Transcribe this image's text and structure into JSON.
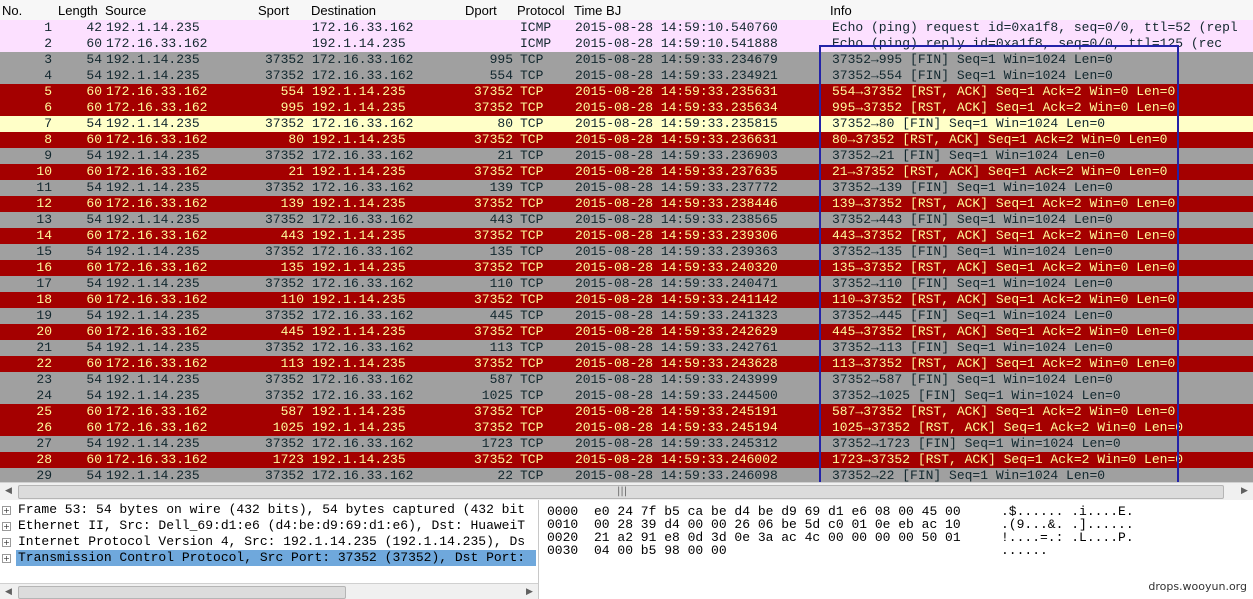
{
  "columns": [
    "No.",
    "Length",
    "Source",
    "Sport",
    "Destination",
    "Dport",
    "Protocol",
    "Time BJ",
    "Info"
  ],
  "rows": [
    {
      "no": "1",
      "len": "42",
      "src": "192.1.14.235",
      "sport": "",
      "dst": "172.16.33.162",
      "dport": "",
      "proto": "ICMP",
      "time": "2015-08-28 14:59:10.540760",
      "info": "Echo (ping) request  id=0xa1f8, seq=0/0, ttl=52 (repl",
      "style": "icmp"
    },
    {
      "no": "2",
      "len": "60",
      "src": "172.16.33.162",
      "sport": "",
      "dst": "192.1.14.235",
      "dport": "",
      "proto": "ICMP",
      "time": "2015-08-28 14:59:10.541888",
      "info": "Echo (ping) reply    id=0xa1f8, seq=0/0, ttl=125 (rec",
      "style": "icmp"
    },
    {
      "no": "3",
      "len": "54",
      "src": "192.1.14.235",
      "sport": "37352",
      "dst": "172.16.33.162",
      "dport": "995",
      "proto": "TCP",
      "time": "2015-08-28 14:59:33.234679",
      "info": "37352→995 [FIN] Seq=1 Win=1024 Len=0",
      "style": "gray"
    },
    {
      "no": "4",
      "len": "54",
      "src": "192.1.14.235",
      "sport": "37352",
      "dst": "172.16.33.162",
      "dport": "554",
      "proto": "TCP",
      "time": "2015-08-28 14:59:33.234921",
      "info": "37352→554 [FIN] Seq=1 Win=1024 Len=0",
      "style": "gray"
    },
    {
      "no": "5",
      "len": "60",
      "src": "172.16.33.162",
      "sport": "554",
      "dst": "192.1.14.235",
      "dport": "37352",
      "proto": "TCP",
      "time": "2015-08-28 14:59:33.235631",
      "info": "554→37352 [RST, ACK] Seq=1 Ack=2 Win=0 Len=0",
      "style": "red"
    },
    {
      "no": "6",
      "len": "60",
      "src": "172.16.33.162",
      "sport": "995",
      "dst": "192.1.14.235",
      "dport": "37352",
      "proto": "TCP",
      "time": "2015-08-28 14:59:33.235634",
      "info": "995→37352 [RST, ACK] Seq=1 Ack=2 Win=0 Len=0",
      "style": "red"
    },
    {
      "no": "7",
      "len": "54",
      "src": "192.1.14.235",
      "sport": "37352",
      "dst": "172.16.33.162",
      "dport": "80",
      "proto": "TCP",
      "time": "2015-08-28 14:59:33.235815",
      "info": "37352→80 [FIN] Seq=1 Win=1024 Len=0",
      "style": "yellow"
    },
    {
      "no": "8",
      "len": "60",
      "src": "172.16.33.162",
      "sport": "80",
      "dst": "192.1.14.235",
      "dport": "37352",
      "proto": "TCP",
      "time": "2015-08-28 14:59:33.236631",
      "info": "80→37352 [RST, ACK] Seq=1 Ack=2 Win=0 Len=0",
      "style": "red"
    },
    {
      "no": "9",
      "len": "54",
      "src": "192.1.14.235",
      "sport": "37352",
      "dst": "172.16.33.162",
      "dport": "21",
      "proto": "TCP",
      "time": "2015-08-28 14:59:33.236903",
      "info": "37352→21 [FIN] Seq=1 Win=1024 Len=0",
      "style": "gray"
    },
    {
      "no": "10",
      "len": "60",
      "src": "172.16.33.162",
      "sport": "21",
      "dst": "192.1.14.235",
      "dport": "37352",
      "proto": "TCP",
      "time": "2015-08-28 14:59:33.237635",
      "info": "21→37352 [RST, ACK] Seq=1 Ack=2 Win=0 Len=0",
      "style": "red"
    },
    {
      "no": "11",
      "len": "54",
      "src": "192.1.14.235",
      "sport": "37352",
      "dst": "172.16.33.162",
      "dport": "139",
      "proto": "TCP",
      "time": "2015-08-28 14:59:33.237772",
      "info": "37352→139 [FIN] Seq=1 Win=1024 Len=0",
      "style": "gray"
    },
    {
      "no": "12",
      "len": "60",
      "src": "172.16.33.162",
      "sport": "139",
      "dst": "192.1.14.235",
      "dport": "37352",
      "proto": "TCP",
      "time": "2015-08-28 14:59:33.238446",
      "info": "139→37352 [RST, ACK] Seq=1 Ack=2 Win=0 Len=0",
      "style": "red"
    },
    {
      "no": "13",
      "len": "54",
      "src": "192.1.14.235",
      "sport": "37352",
      "dst": "172.16.33.162",
      "dport": "443",
      "proto": "TCP",
      "time": "2015-08-28 14:59:33.238565",
      "info": "37352→443 [FIN] Seq=1 Win=1024 Len=0",
      "style": "gray"
    },
    {
      "no": "14",
      "len": "60",
      "src": "172.16.33.162",
      "sport": "443",
      "dst": "192.1.14.235",
      "dport": "37352",
      "proto": "TCP",
      "time": "2015-08-28 14:59:33.239306",
      "info": "443→37352 [RST, ACK] Seq=1 Ack=2 Win=0 Len=0",
      "style": "red"
    },
    {
      "no": "15",
      "len": "54",
      "src": "192.1.14.235",
      "sport": "37352",
      "dst": "172.16.33.162",
      "dport": "135",
      "proto": "TCP",
      "time": "2015-08-28 14:59:33.239363",
      "info": "37352→135 [FIN] Seq=1 Win=1024 Len=0",
      "style": "gray"
    },
    {
      "no": "16",
      "len": "60",
      "src": "172.16.33.162",
      "sport": "135",
      "dst": "192.1.14.235",
      "dport": "37352",
      "proto": "TCP",
      "time": "2015-08-28 14:59:33.240320",
      "info": "135→37352 [RST, ACK] Seq=1 Ack=2 Win=0 Len=0",
      "style": "red"
    },
    {
      "no": "17",
      "len": "54",
      "src": "192.1.14.235",
      "sport": "37352",
      "dst": "172.16.33.162",
      "dport": "110",
      "proto": "TCP",
      "time": "2015-08-28 14:59:33.240471",
      "info": "37352→110 [FIN] Seq=1 Win=1024 Len=0",
      "style": "gray"
    },
    {
      "no": "18",
      "len": "60",
      "src": "172.16.33.162",
      "sport": "110",
      "dst": "192.1.14.235",
      "dport": "37352",
      "proto": "TCP",
      "time": "2015-08-28 14:59:33.241142",
      "info": "110→37352 [RST, ACK] Seq=1 Ack=2 Win=0 Len=0",
      "style": "red"
    },
    {
      "no": "19",
      "len": "54",
      "src": "192.1.14.235",
      "sport": "37352",
      "dst": "172.16.33.162",
      "dport": "445",
      "proto": "TCP",
      "time": "2015-08-28 14:59:33.241323",
      "info": "37352→445 [FIN] Seq=1 Win=1024 Len=0",
      "style": "gray"
    },
    {
      "no": "20",
      "len": "60",
      "src": "172.16.33.162",
      "sport": "445",
      "dst": "192.1.14.235",
      "dport": "37352",
      "proto": "TCP",
      "time": "2015-08-28 14:59:33.242629",
      "info": "445→37352 [RST, ACK] Seq=1 Ack=2 Win=0 Len=0",
      "style": "red"
    },
    {
      "no": "21",
      "len": "54",
      "src": "192.1.14.235",
      "sport": "37352",
      "dst": "172.16.33.162",
      "dport": "113",
      "proto": "TCP",
      "time": "2015-08-28 14:59:33.242761",
      "info": "37352→113 [FIN] Seq=1 Win=1024 Len=0",
      "style": "gray"
    },
    {
      "no": "22",
      "len": "60",
      "src": "172.16.33.162",
      "sport": "113",
      "dst": "192.1.14.235",
      "dport": "37352",
      "proto": "TCP",
      "time": "2015-08-28 14:59:33.243628",
      "info": "113→37352 [RST, ACK] Seq=1 Ack=2 Win=0 Len=0",
      "style": "red"
    },
    {
      "no": "23",
      "len": "54",
      "src": "192.1.14.235",
      "sport": "37352",
      "dst": "172.16.33.162",
      "dport": "587",
      "proto": "TCP",
      "time": "2015-08-28 14:59:33.243999",
      "info": "37352→587 [FIN] Seq=1 Win=1024 Len=0",
      "style": "gray"
    },
    {
      "no": "24",
      "len": "54",
      "src": "192.1.14.235",
      "sport": "37352",
      "dst": "172.16.33.162",
      "dport": "1025",
      "proto": "TCP",
      "time": "2015-08-28 14:59:33.244500",
      "info": "37352→1025 [FIN] Seq=1 Win=1024 Len=0",
      "style": "gray"
    },
    {
      "no": "25",
      "len": "60",
      "src": "172.16.33.162",
      "sport": "587",
      "dst": "192.1.14.235",
      "dport": "37352",
      "proto": "TCP",
      "time": "2015-08-28 14:59:33.245191",
      "info": "587→37352 [RST, ACK] Seq=1 Ack=2 Win=0 Len=0",
      "style": "red"
    },
    {
      "no": "26",
      "len": "60",
      "src": "172.16.33.162",
      "sport": "1025",
      "dst": "192.1.14.235",
      "dport": "37352",
      "proto": "TCP",
      "time": "2015-08-28 14:59:33.245194",
      "info": "1025→37352 [RST, ACK] Seq=1 Ack=2 Win=0 Len=0",
      "style": "red"
    },
    {
      "no": "27",
      "len": "54",
      "src": "192.1.14.235",
      "sport": "37352",
      "dst": "172.16.33.162",
      "dport": "1723",
      "proto": "TCP",
      "time": "2015-08-28 14:59:33.245312",
      "info": "37352→1723 [FIN] Seq=1 Win=1024 Len=0",
      "style": "gray"
    },
    {
      "no": "28",
      "len": "60",
      "src": "172.16.33.162",
      "sport": "1723",
      "dst": "192.1.14.235",
      "dport": "37352",
      "proto": "TCP",
      "time": "2015-08-28 14:59:33.246002",
      "info": "1723→37352 [RST, ACK] Seq=1 Ack=2 Win=0 Len=0",
      "style": "red"
    },
    {
      "no": "29",
      "len": "54",
      "src": "192.1.14.235",
      "sport": "37352",
      "dst": "172.16.33.162",
      "dport": "22",
      "proto": "TCP",
      "time": "2015-08-28 14:59:33.246098",
      "info": "37352→22 [FIN] Seq=1 Win=1024 Len=0",
      "style": "gray"
    }
  ],
  "details": [
    {
      "text": "Frame 53: 54 bytes on wire (432 bits), 54 bytes captured (432 bit",
      "selected": false
    },
    {
      "text": "Ethernet II, Src: Dell_69:d1:e6 (d4:be:d9:69:d1:e6), Dst: HuaweiT",
      "selected": false
    },
    {
      "text": "Internet Protocol Version 4, Src: 192.1.14.235 (192.1.14.235), Ds",
      "selected": false
    },
    {
      "text": "Transmission Control Protocol, Src Port: 37352 (37352), Dst Port:",
      "selected": true
    }
  ],
  "bytes": [
    {
      "offset": "0000",
      "hex": "e0 24 7f b5 ca be d4 be  d9 69 d1 e6 08 00 45 00",
      "ascii": ".$......  .i....E."
    },
    {
      "offset": "0010",
      "hex": "00 28 39 d4 00 00 26 06  be 5d c0 01 0e eb ac 10",
      "ascii": ".(9...&.  .]......"
    },
    {
      "offset": "0020",
      "hex": "21 a2 91 e8 0d 3d 0e 3a  ac 4c 00 00 00 00 50 01",
      "ascii": "!....=.:  .L....P."
    },
    {
      "offset": "0030",
      "hex": "04 00 b5 98 00 00",
      "ascii": "......"
    }
  ],
  "icons": {
    "expand": "plus-expander-icon",
    "scroll_left": "arrow-left-icon",
    "scroll_right": "arrow-right-icon",
    "grip": "scroll-grip-icon"
  },
  "glyphs": {
    "plus": "+",
    "left": "◀",
    "right": "▶",
    "grip": "|||"
  },
  "watermark": "drops.wooyun.org",
  "colors": {
    "icmp_bg": "#fce0ff",
    "fin_bg": "#a0a0a0",
    "rst_bg": "#a40000",
    "rst_fg": "#fffc9c",
    "syn_bg": "#ffffc8",
    "highlight": "#2323a8",
    "selected": "#6fa8dc"
  }
}
